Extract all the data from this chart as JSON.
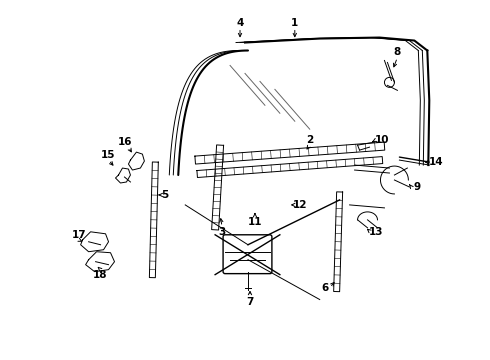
{
  "bg_color": "#ffffff",
  "line_color": "#000000",
  "fig_width": 4.9,
  "fig_height": 3.6,
  "dpi": 100,
  "lw_main": 1.5,
  "lw_thin": 0.7,
  "lw_med": 1.0,
  "label_fontsize": 7.5
}
